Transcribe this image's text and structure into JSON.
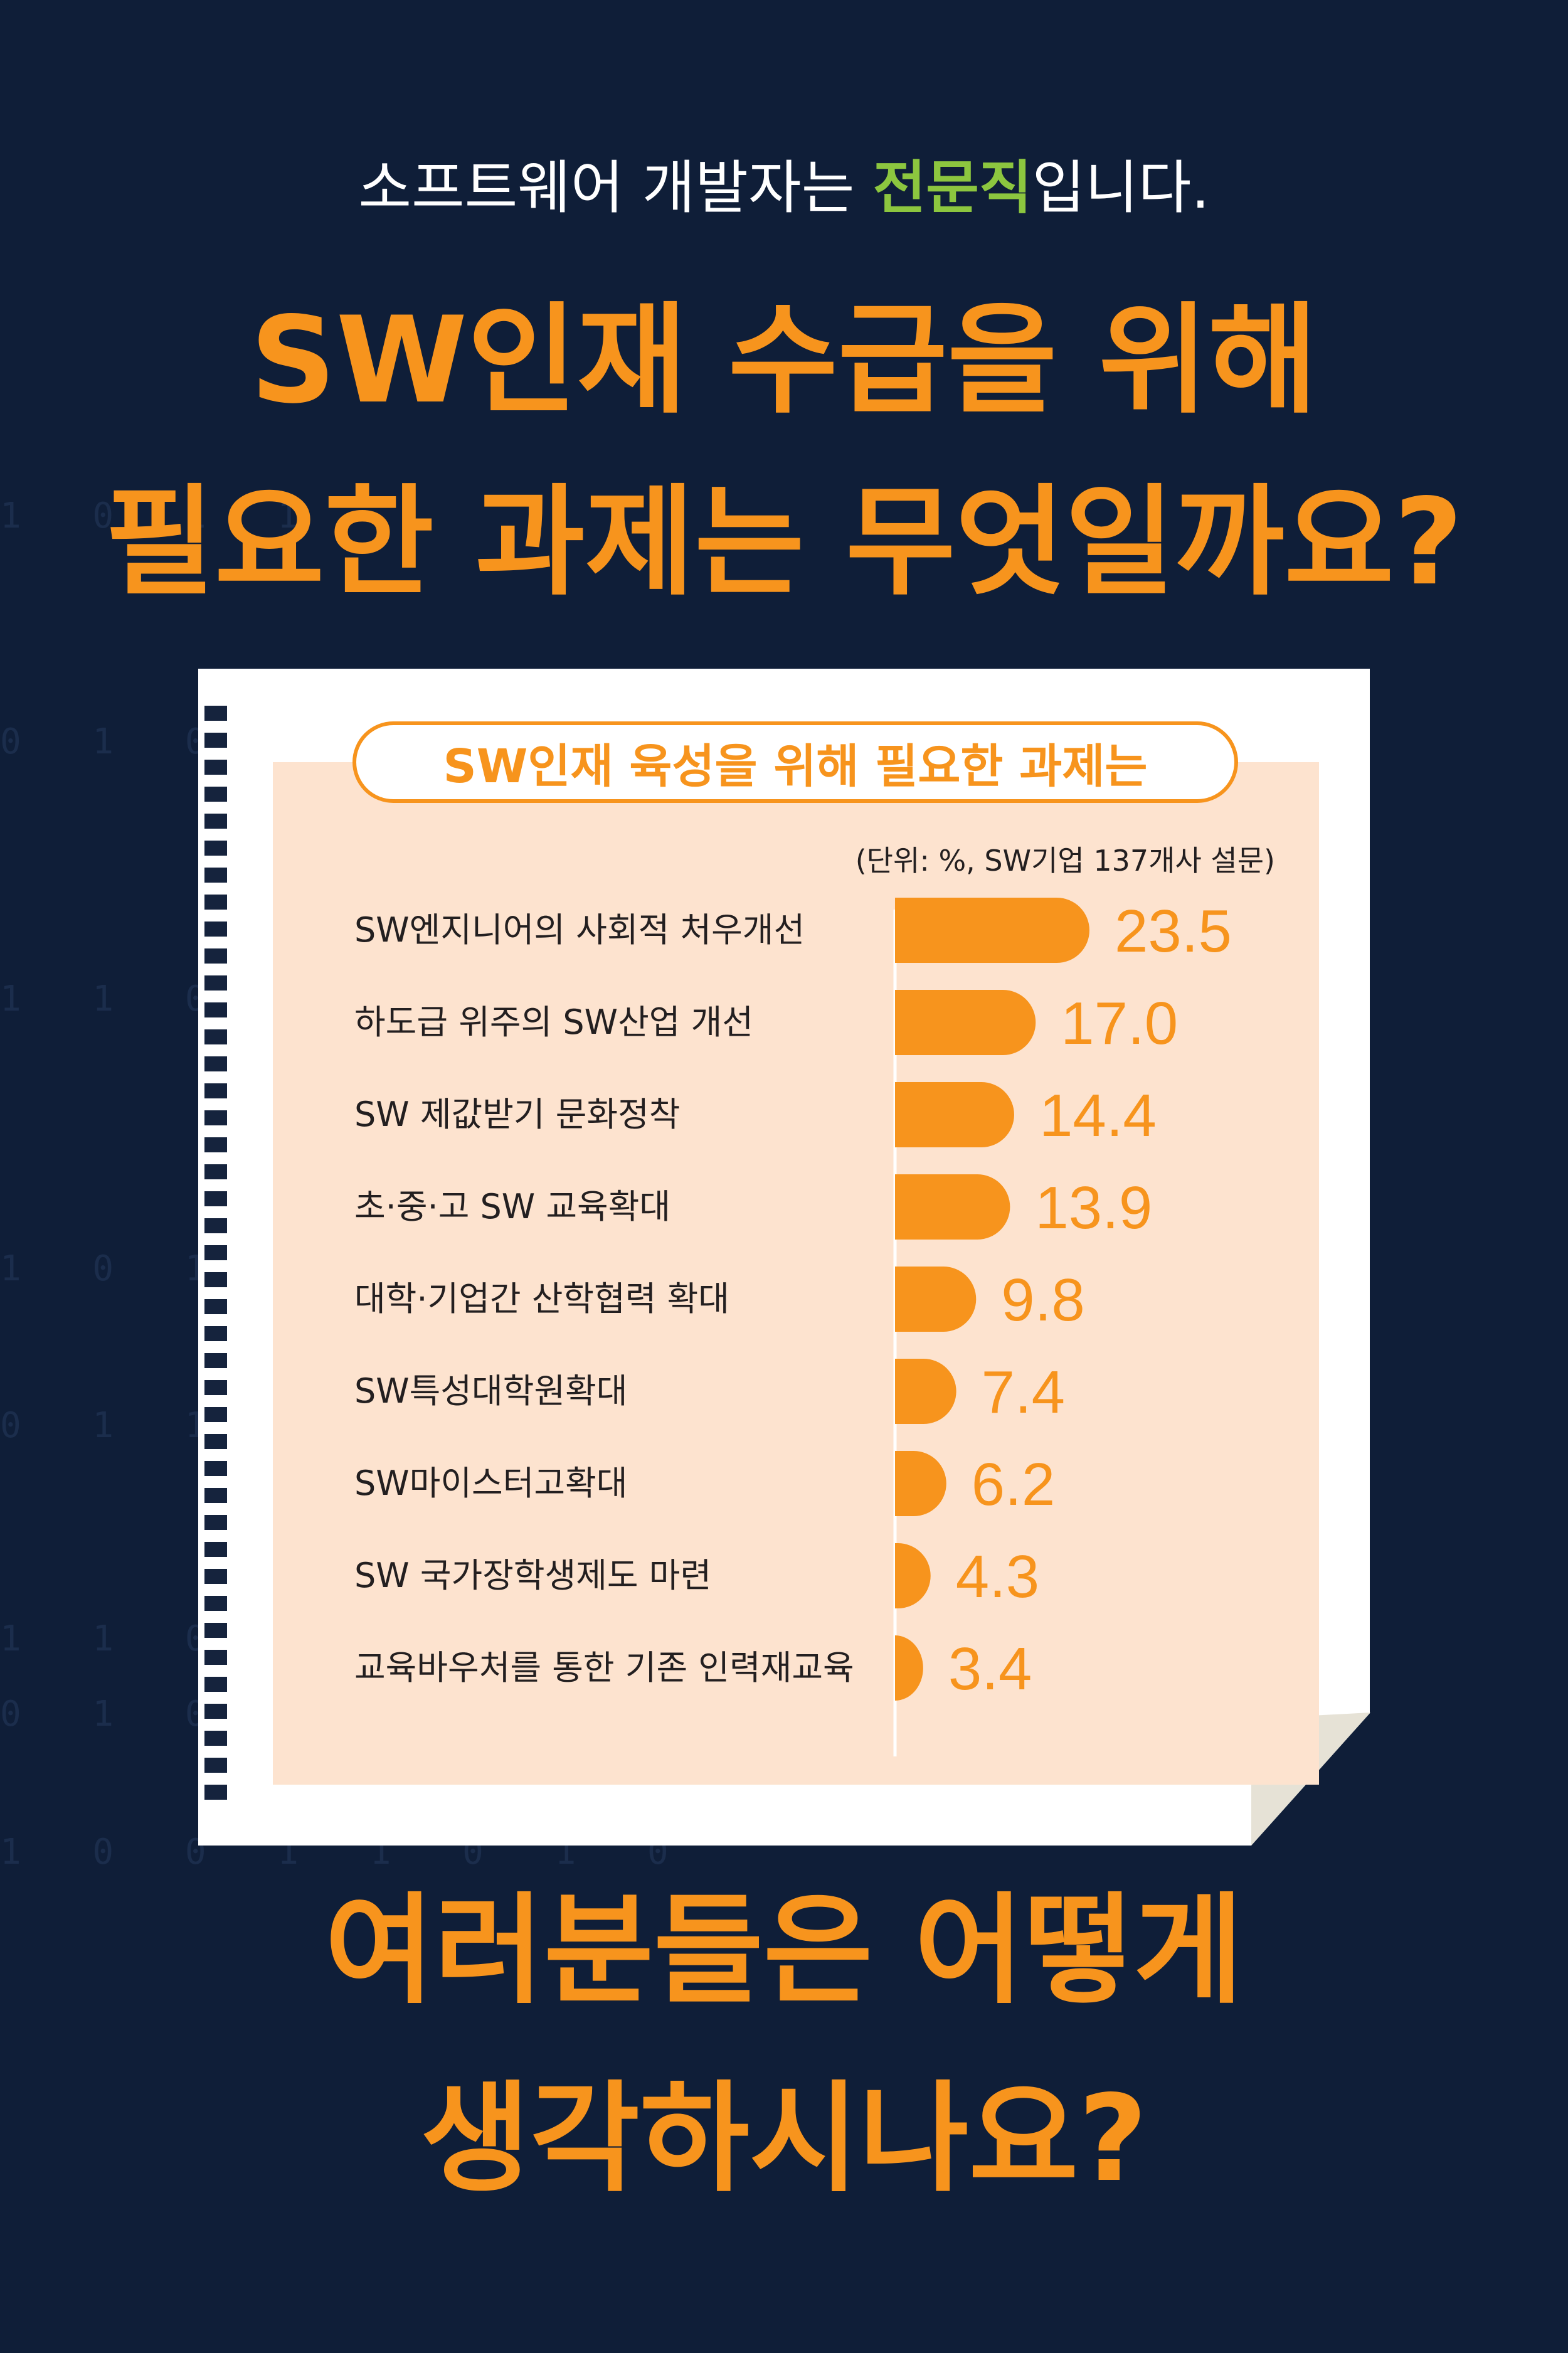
{
  "intro": {
    "before": "소프트웨어 개발자는 ",
    "highlight": "전문직",
    "after": "입니다."
  },
  "headline": {
    "line1": "SW인재 수급을 위해",
    "line2": "필요한 과제는 무엇일까요?"
  },
  "closing": {
    "line1": "여러분들은 어떻게",
    "line2": "생각하시나요?"
  },
  "background_code": [
    "1 0 1 1",
    "0 1 0 1 0",
    "1 1 0 1 0",
    "1 0 1 1 0 1",
    "0 1 1 0 1",
    "1 1 0 0 1 0 1",
    "0 1 0 1 1 0 1 0 1",
    "1 0 0 1 1 0 1 0"
  ],
  "colors": {
    "background": "#0f1e38",
    "accent": "#f7941d",
    "highlight": "#8cc63f",
    "panel": "#fde3cf",
    "paper": "#ffffff",
    "text": "#231f20"
  },
  "chart_data": {
    "type": "bar",
    "orientation": "horizontal",
    "title": "SW인재 육성을 위해 필요한 과제는",
    "unit_note": "(단위: %, SW기업 137개사 설문)",
    "categories": [
      "SW엔지니어의 사회적 처우개선",
      "하도급 위주의 SW산업 개선",
      "SW 제값받기 문화정착",
      "초·중·고 SW 교육확대",
      "대학·기업간 산학협력 확대",
      "SW특성대학원확대",
      "SW마이스터고확대",
      "SW 국가장학생제도 마련",
      "교육바우처를 통한 기존 인력재교육"
    ],
    "values": [
      23.5,
      17.0,
      14.4,
      13.9,
      9.8,
      7.4,
      6.2,
      4.3,
      3.4
    ],
    "value_labels": [
      "23.5",
      "17.0",
      "14.4",
      "13.9",
      "9.8",
      "7.4",
      "6.2",
      "4.3",
      "3.4"
    ],
    "bar_color": "#f7941d"
  }
}
